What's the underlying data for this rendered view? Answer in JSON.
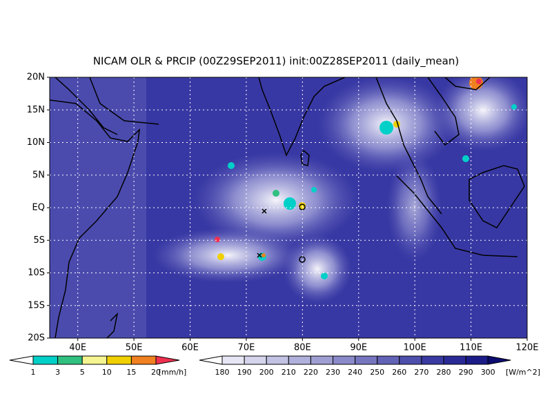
{
  "title": "NICAM OLR & PRCIP (00Z29SEP2011) init:00Z28SEP2011 (daily_mean)",
  "map": {
    "xlim": [
      35,
      120
    ],
    "ylim": [
      -20,
      20
    ],
    "xticks": [
      {
        "value": 40,
        "label": "40E"
      },
      {
        "value": 50,
        "label": "50E"
      },
      {
        "value": 60,
        "label": "60E"
      },
      {
        "value": 70,
        "label": "70E"
      },
      {
        "value": 80,
        "label": "80E"
      },
      {
        "value": 90,
        "label": "90E"
      },
      {
        "value": 100,
        "label": "100E"
      },
      {
        "value": 110,
        "label": "110E"
      },
      {
        "value": 120,
        "label": "120E"
      }
    ],
    "yticks": [
      {
        "value": 20,
        "label": "20N"
      },
      {
        "value": 15,
        "label": "15N"
      },
      {
        "value": 10,
        "label": "10N"
      },
      {
        "value": 5,
        "label": "5N"
      },
      {
        "value": 0,
        "label": "EQ"
      },
      {
        "value": -5,
        "label": "5S"
      },
      {
        "value": -10,
        "label": "10S"
      },
      {
        "value": -15,
        "label": "15S"
      },
      {
        "value": -20,
        "label": "20S"
      }
    ],
    "grid": true
  },
  "legends": [
    {
      "levels": [
        1,
        3,
        5,
        10,
        15,
        20
      ],
      "unit": "[mm/h]",
      "colors": [
        "#ffffff",
        "#00d0c8",
        "#30c080",
        "#f4f490",
        "#f0d000",
        "#f08020",
        "#f03050"
      ]
    },
    {
      "levels": [
        180,
        190,
        200,
        210,
        220,
        230,
        240,
        250,
        260,
        270,
        280,
        290,
        300
      ],
      "unit": "[W/m^2]",
      "colors": [
        "#ffffff",
        "#e6e6f4",
        "#d4d4ec",
        "#c2c2e4",
        "#b0b0dc",
        "#9e9ed2",
        "#8a8aca",
        "#7676c0",
        "#6262b6",
        "#4e4eac",
        "#3a3aa2",
        "#2a2a96",
        "#1c1c88",
        "#0c0c70"
      ]
    }
  ]
}
